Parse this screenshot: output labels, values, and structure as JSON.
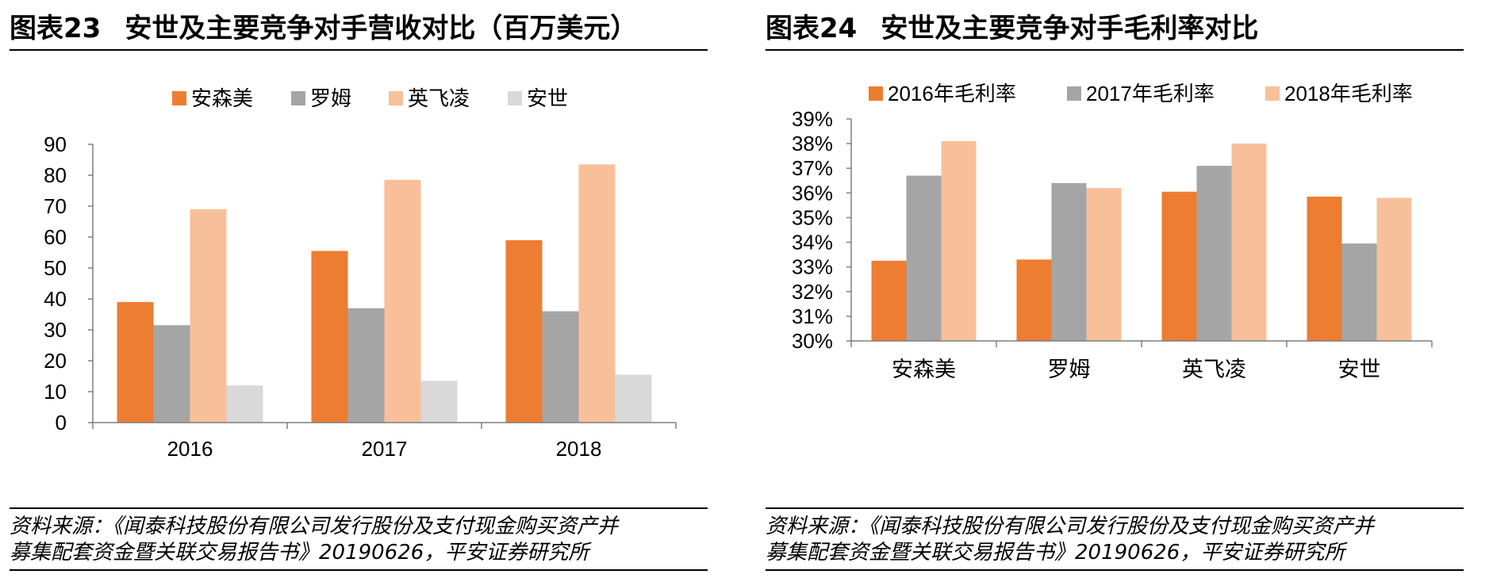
{
  "colors": {
    "series1": "#ED7D31",
    "series2": "#A5A5A5",
    "series3": "#F8C09A",
    "series4": "#D9D9D9",
    "axis": "#7f7f7f"
  },
  "left": {
    "figure_label": "图表23",
    "title": "安世及主要竞争对手营收对比（百万美元）",
    "source_line1": "资料来源：《闻泰科技股份有限公司发行股份及支付现金购买资产并",
    "source_line2": "募集配套资金暨关联交易报告书》20190626，平安证券研究所"
  },
  "right": {
    "figure_label": "图表24",
    "title": "安世及主要竞争对手毛利率对比",
    "source_line1": "资料来源：《闻泰科技股份有限公司发行股份及支付现金购买资产并",
    "source_line2": "募集配套资金暨关联交易报告书》20190626，平安证券研究所"
  },
  "chart_data": [
    {
      "type": "bar",
      "title": "安世及主要竞争对手营收对比（百万美元）",
      "categories": [
        "2016",
        "2017",
        "2018"
      ],
      "series": [
        {
          "name": "安森美",
          "values": [
            39,
            55.5,
            59
          ]
        },
        {
          "name": "罗姆",
          "values": [
            31.5,
            37,
            36
          ]
        },
        {
          "name": "英飞凌",
          "values": [
            69,
            78.5,
            83.5
          ]
        },
        {
          "name": "安世",
          "values": [
            12,
            13.5,
            15.5
          ]
        }
      ],
      "ylim": [
        0,
        90
      ],
      "yticks": [
        0,
        10,
        20,
        30,
        40,
        50,
        60,
        70,
        80,
        90
      ],
      "ytick_labels": [
        "0",
        "10",
        "20",
        "30",
        "40",
        "50",
        "60",
        "70",
        "80",
        "90"
      ],
      "xlabel": "",
      "ylabel": "",
      "legend": "top",
      "grid": false
    },
    {
      "type": "bar",
      "title": "安世及主要竞争对手毛利率对比",
      "categories": [
        "安森美",
        "罗姆",
        "英飞凌",
        "安世"
      ],
      "series": [
        {
          "name": "2016年毛利率",
          "values": [
            33.25,
            33.3,
            36.05,
            35.85
          ]
        },
        {
          "name": "2017年毛利率",
          "values": [
            36.7,
            36.4,
            37.1,
            33.95
          ]
        },
        {
          "name": "2018年毛利率",
          "values": [
            38.1,
            36.2,
            38.0,
            35.8
          ]
        }
      ],
      "ylim": [
        30,
        39
      ],
      "yticks": [
        30,
        31,
        32,
        33,
        34,
        35,
        36,
        37,
        38,
        39
      ],
      "ytick_labels": [
        "30%",
        "31%",
        "32%",
        "33%",
        "34%",
        "35%",
        "36%",
        "37%",
        "38%",
        "39%"
      ],
      "xlabel": "",
      "ylabel": "",
      "legend": "top",
      "grid": false
    }
  ]
}
